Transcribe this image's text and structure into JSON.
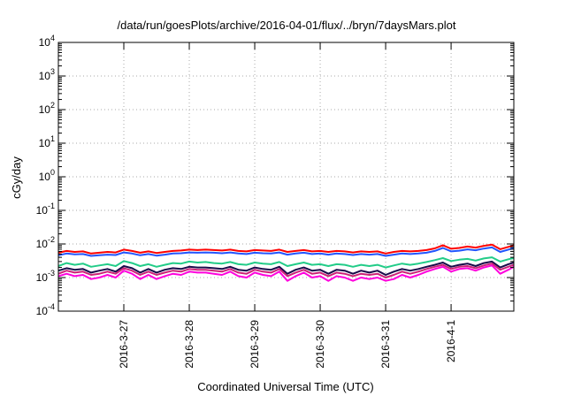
{
  "chart_data": {
    "type": "line",
    "title": "/data/run/goesPlots/archive/2016-04-01/flux/../bryn/7daysMars.plot",
    "xlabel": "Coordinated Universal Time (UTC)",
    "ylabel": "cGy/day",
    "yscale": "log",
    "ylim": [
      0.0001,
      10000
    ],
    "y_tick_labels": [
      {
        "base": "10",
        "exp": "-4"
      },
      {
        "base": "10",
        "exp": "-3"
      },
      {
        "base": "10",
        "exp": "-2"
      },
      {
        "base": "10",
        "exp": "-1"
      },
      {
        "base": "10",
        "exp": "0"
      },
      {
        "base": "10",
        "exp": "1"
      },
      {
        "base": "10",
        "exp": "2"
      },
      {
        "base": "10",
        "exp": "3"
      },
      {
        "base": "10",
        "exp": "4"
      }
    ],
    "x_tick_labels": [
      "2016-3-27",
      "2016-3-28",
      "2016-3-29",
      "2016-3-30",
      "2016-3-31",
      "2016-4-1"
    ],
    "xlim": [
      "2016-03-26T00:00",
      "2016-04-01T23:00"
    ],
    "grid": true,
    "x_tick_dates": [
      "2016-03-27T00:00",
      "2016-03-28T00:00",
      "2016-03-29T00:00",
      "2016-03-30T00:00",
      "2016-03-31T00:00",
      "2016-04-01T00:00"
    ],
    "x": [
      "2016-03-26T00:00",
      "2016-03-26T03:00",
      "2016-03-26T06:00",
      "2016-03-26T09:00",
      "2016-03-26T12:00",
      "2016-03-26T15:00",
      "2016-03-26T18:00",
      "2016-03-26T21:00",
      "2016-03-27T00:00",
      "2016-03-27T03:00",
      "2016-03-27T06:00",
      "2016-03-27T09:00",
      "2016-03-27T12:00",
      "2016-03-27T15:00",
      "2016-03-27T18:00",
      "2016-03-27T21:00",
      "2016-03-28T00:00",
      "2016-03-28T03:00",
      "2016-03-28T06:00",
      "2016-03-28T09:00",
      "2016-03-28T12:00",
      "2016-03-28T15:00",
      "2016-03-28T18:00",
      "2016-03-28T21:00",
      "2016-03-29T00:00",
      "2016-03-29T03:00",
      "2016-03-29T06:00",
      "2016-03-29T09:00",
      "2016-03-29T12:00",
      "2016-03-29T15:00",
      "2016-03-29T18:00",
      "2016-03-29T21:00",
      "2016-03-30T00:00",
      "2016-03-30T03:00",
      "2016-03-30T06:00",
      "2016-03-30T09:00",
      "2016-03-30T12:00",
      "2016-03-30T15:00",
      "2016-03-30T18:00",
      "2016-03-30T21:00",
      "2016-03-31T00:00",
      "2016-03-31T03:00",
      "2016-03-31T06:00",
      "2016-03-31T09:00",
      "2016-03-31T12:00",
      "2016-03-31T15:00",
      "2016-03-31T18:00",
      "2016-03-31T21:00",
      "2016-04-01T00:00",
      "2016-04-01T03:00",
      "2016-04-01T06:00",
      "2016-04-01T09:00",
      "2016-04-01T12:00",
      "2016-04-01T15:00",
      "2016-04-01T18:00",
      "2016-04-01T21:00",
      "2016-04-01T23:00"
    ],
    "series": [
      {
        "color": "#ff0000",
        "values": [
          0.0055,
          0.0062,
          0.0058,
          0.006,
          0.0052,
          0.0055,
          0.0058,
          0.0056,
          0.0068,
          0.0062,
          0.0055,
          0.006,
          0.0054,
          0.0058,
          0.0062,
          0.0064,
          0.0068,
          0.0066,
          0.0068,
          0.0066,
          0.0064,
          0.0068,
          0.0062,
          0.006,
          0.0066,
          0.0064,
          0.0062,
          0.0068,
          0.0058,
          0.0062,
          0.0066,
          0.006,
          0.0062,
          0.0058,
          0.0062,
          0.006,
          0.0056,
          0.006,
          0.0058,
          0.006,
          0.0052,
          0.0058,
          0.0062,
          0.006,
          0.0062,
          0.0066,
          0.0074,
          0.0092,
          0.0072,
          0.0076,
          0.0084,
          0.0078,
          0.0088,
          0.0096,
          0.007,
          0.0082,
          0.0092
        ]
      },
      {
        "color": "#2255ff",
        "values": [
          0.0046,
          0.0052,
          0.0049,
          0.005,
          0.0044,
          0.0046,
          0.0048,
          0.0047,
          0.0056,
          0.0052,
          0.0046,
          0.005,
          0.0045,
          0.0048,
          0.0052,
          0.0053,
          0.0056,
          0.0055,
          0.0056,
          0.0055,
          0.0053,
          0.0056,
          0.0052,
          0.005,
          0.0055,
          0.0053,
          0.0052,
          0.0056,
          0.0048,
          0.0052,
          0.0055,
          0.005,
          0.0052,
          0.0048,
          0.0052,
          0.005,
          0.0047,
          0.005,
          0.0048,
          0.005,
          0.0044,
          0.0048,
          0.0052,
          0.005,
          0.0052,
          0.0055,
          0.0062,
          0.0076,
          0.006,
          0.0063,
          0.0069,
          0.0065,
          0.0073,
          0.0079,
          0.0058,
          0.0068,
          0.0076
        ]
      },
      {
        "color": "#22cc88",
        "values": [
          0.0022,
          0.0027,
          0.0024,
          0.0026,
          0.0021,
          0.0023,
          0.0025,
          0.0022,
          0.0031,
          0.0027,
          0.0022,
          0.0025,
          0.0021,
          0.0024,
          0.0027,
          0.0026,
          0.003,
          0.0028,
          0.0029,
          0.0027,
          0.0026,
          0.0029,
          0.0025,
          0.0024,
          0.0028,
          0.0026,
          0.0025,
          0.0029,
          0.0022,
          0.0025,
          0.0028,
          0.0024,
          0.0025,
          0.0022,
          0.0025,
          0.0024,
          0.0021,
          0.0024,
          0.0022,
          0.0024,
          0.002,
          0.0023,
          0.0026,
          0.0024,
          0.0026,
          0.0029,
          0.0033,
          0.0038,
          0.0031,
          0.0034,
          0.0036,
          0.0032,
          0.0037,
          0.004,
          0.003,
          0.0035,
          0.0038
        ]
      },
      {
        "color": "#1a0a4a",
        "values": [
          0.0016,
          0.0019,
          0.0017,
          0.0018,
          0.0014,
          0.0016,
          0.0018,
          0.0015,
          0.0022,
          0.0019,
          0.0014,
          0.0018,
          0.0014,
          0.0017,
          0.0019,
          0.0018,
          0.0021,
          0.002,
          0.002,
          0.0019,
          0.0018,
          0.0021,
          0.0017,
          0.0016,
          0.002,
          0.0018,
          0.0017,
          0.0021,
          0.0013,
          0.0017,
          0.002,
          0.0016,
          0.0017,
          0.0013,
          0.0017,
          0.0016,
          0.0013,
          0.0016,
          0.0014,
          0.0016,
          0.0012,
          0.0015,
          0.0018,
          0.0016,
          0.0018,
          0.0021,
          0.0024,
          0.0028,
          0.0021,
          0.0024,
          0.0026,
          0.0022,
          0.0027,
          0.003,
          0.002,
          0.0025,
          0.0028
        ]
      },
      {
        "color": "#cc2277",
        "values": [
          0.0013,
          0.0016,
          0.0014,
          0.0015,
          0.0012,
          0.0013,
          0.0015,
          0.0013,
          0.0019,
          0.0016,
          0.0012,
          0.0015,
          0.0012,
          0.0014,
          0.0016,
          0.0015,
          0.0018,
          0.0017,
          0.0017,
          0.0016,
          0.0015,
          0.0018,
          0.0014,
          0.0013,
          0.0017,
          0.0015,
          0.0014,
          0.0018,
          0.0011,
          0.0014,
          0.0017,
          0.0013,
          0.0014,
          0.0011,
          0.0014,
          0.0013,
          0.0011,
          0.0013,
          0.0012,
          0.0013,
          0.001,
          0.0012,
          0.0015,
          0.0013,
          0.0015,
          0.0018,
          0.0021,
          0.0024,
          0.0018,
          0.0021,
          0.0022,
          0.0019,
          0.0023,
          0.0026,
          0.0017,
          0.0021,
          0.0024
        ]
      },
      {
        "color": "#ff00dd",
        "values": [
          0.0011,
          0.0013,
          0.0011,
          0.0012,
          0.0009,
          0.001,
          0.0012,
          0.001,
          0.0016,
          0.0013,
          0.0009,
          0.0012,
          0.0009,
          0.0011,
          0.0013,
          0.0012,
          0.0015,
          0.0014,
          0.0014,
          0.0013,
          0.0012,
          0.0015,
          0.0011,
          0.001,
          0.0014,
          0.0012,
          0.0011,
          0.0015,
          0.0008,
          0.0011,
          0.0014,
          0.001,
          0.0011,
          0.0008,
          0.0011,
          0.001,
          0.0008,
          0.001,
          0.0009,
          0.001,
          0.0008,
          0.0009,
          0.0012,
          0.001,
          0.0012,
          0.0015,
          0.0018,
          0.0021,
          0.0015,
          0.0018,
          0.0019,
          0.0016,
          0.002,
          0.0023,
          0.0013,
          0.0017,
          0.0021
        ]
      }
    ]
  }
}
